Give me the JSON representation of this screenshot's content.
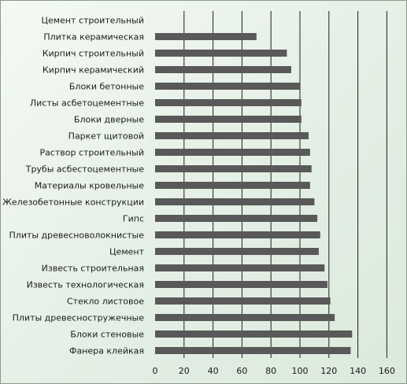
{
  "chart_data": {
    "type": "bar",
    "orientation": "horizontal",
    "categories": [
      "Цемент строительный",
      "Плитка керамическая",
      "Кирпич строительный",
      "Кирпич керамический",
      "Блоки бетонные",
      "Листы асбетоцементные",
      "Блоки дверные",
      "Паркет щитовой",
      "Раствор строительный",
      "Трубы асбестоцементные",
      "Материалы кровельные",
      "Железобетонные конструкции",
      "Гипс",
      "Плиты древесноволокнистые",
      "Цемент",
      "Известь строительная",
      "Известь технологическая",
      "Стекло листовое",
      "Плиты древесностружечные",
      "Блоки стеновые",
      "Фанера клейкая"
    ],
    "values": [
      0,
      70,
      91,
      94,
      100,
      101,
      101,
      106,
      107,
      108,
      107,
      110,
      112,
      114,
      113,
      117,
      119,
      121,
      124,
      136,
      135
    ],
    "xlim": [
      0,
      160
    ],
    "x_ticks": [
      "0",
      "20",
      "40",
      "60",
      "80",
      "100",
      "120",
      "140",
      "160"
    ],
    "grid": "vertical",
    "bar_color": "#595959",
    "grid_color": "#1f1f1f",
    "background_color": "#e4efe5",
    "title": "",
    "xlabel": "",
    "ylabel": ""
  }
}
